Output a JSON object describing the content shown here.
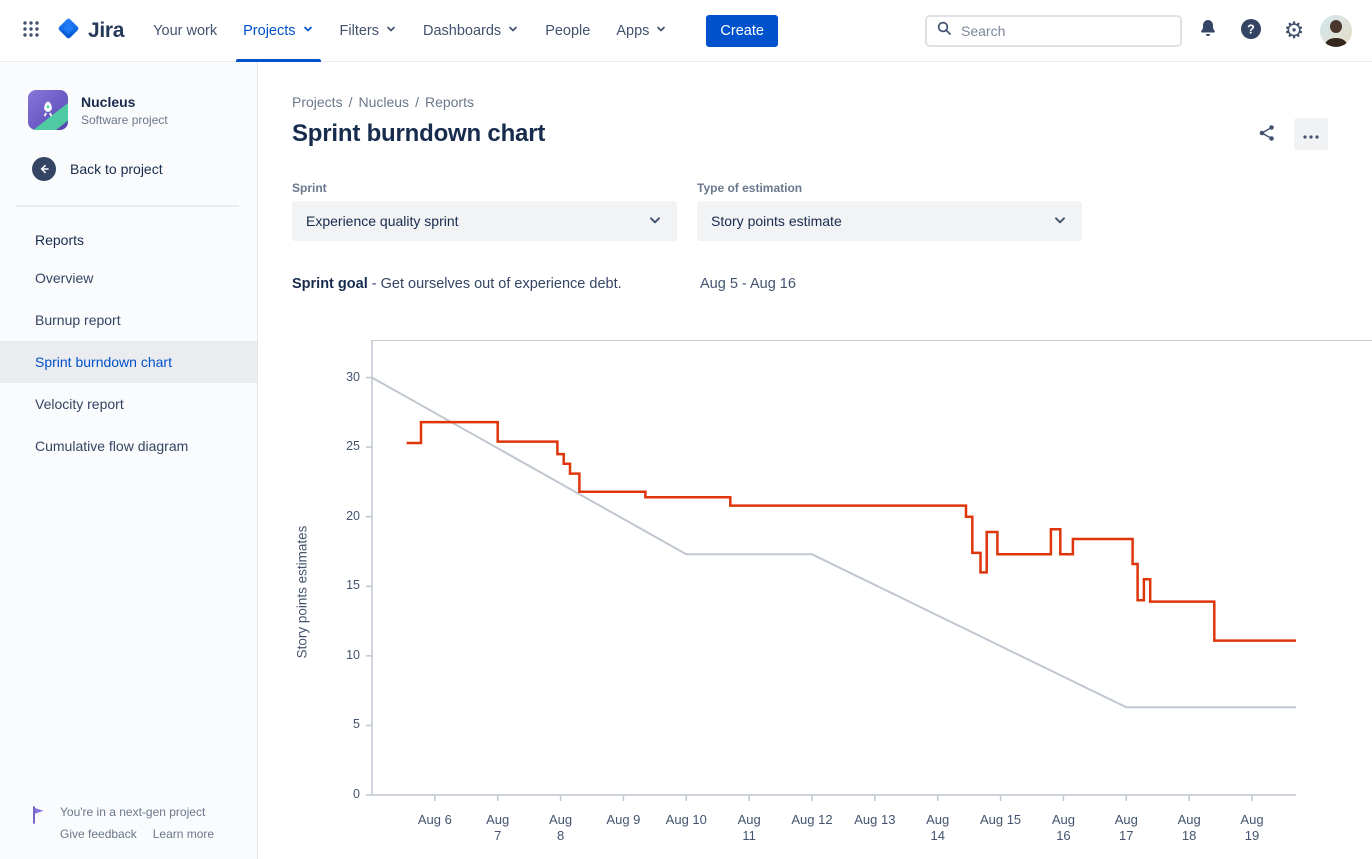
{
  "navbar": {
    "logo_text": "Jira",
    "items": [
      {
        "label": "Your work",
        "has_chevron": false,
        "active": false
      },
      {
        "label": "Projects",
        "has_chevron": true,
        "active": true
      },
      {
        "label": "Filters",
        "has_chevron": true,
        "active": false
      },
      {
        "label": "Dashboards",
        "has_chevron": true,
        "active": false
      },
      {
        "label": "People",
        "has_chevron": false,
        "active": false
      },
      {
        "label": "Apps",
        "has_chevron": true,
        "active": false
      }
    ],
    "create_label": "Create",
    "search_placeholder": "Search"
  },
  "sidebar": {
    "project": {
      "name": "Nucleus",
      "type": "Software project"
    },
    "back_label": "Back to project",
    "section": "Reports",
    "items": [
      {
        "label": "Overview",
        "selected": false
      },
      {
        "label": "Burnup report",
        "selected": false
      },
      {
        "label": "Sprint burndown chart",
        "selected": true
      },
      {
        "label": "Velocity report",
        "selected": false
      },
      {
        "label": "Cumulative flow diagram",
        "selected": false
      }
    ],
    "footer": {
      "line1": "You're in a next-gen project",
      "feedback": "Give feedback",
      "learn": "Learn more"
    }
  },
  "main": {
    "breadcrumb": [
      "Projects",
      "Nucleus",
      "Reports"
    ],
    "breadcrumb_sep": "/",
    "title": "Sprint burndown chart",
    "filters": {
      "sprint_label": "Sprint",
      "sprint_value": "Experience quality sprint",
      "estimation_label": "Type of estimation",
      "estimation_value": "Story points estimate"
    },
    "goal": {
      "label": "Sprint goal",
      "text": "- Get ourselves out of experience debt.",
      "dates": "Aug 5 - Aug 16"
    }
  },
  "icons": {
    "gear": "⚙"
  },
  "colors": {
    "accent": "#0052CC",
    "burndown_red": "#DE350B",
    "guideline_gray": "#C1C7D0"
  },
  "chart_data": {
    "type": "line",
    "title": "Sprint burndown chart",
    "xlabel": "",
    "ylabel": "Story points estimates",
    "x_unit": "days since Aug 5",
    "xlim": [
      0,
      14.7
    ],
    "ylim": [
      0,
      32.7
    ],
    "grid": false,
    "legend": "none",
    "y_ticks": [
      0,
      5,
      10,
      15,
      20,
      25,
      30
    ],
    "x_ticks": [
      {
        "day": 1,
        "label": "Aug 6"
      },
      {
        "day": 2,
        "label": "Aug\n7"
      },
      {
        "day": 3,
        "label": "Aug\n8"
      },
      {
        "day": 4,
        "label": "Aug 9"
      },
      {
        "day": 5,
        "label": "Aug 10"
      },
      {
        "day": 6,
        "label": "Aug\n11"
      },
      {
        "day": 7,
        "label": "Aug 12"
      },
      {
        "day": 8,
        "label": "Aug 13"
      },
      {
        "day": 9,
        "label": "Aug\n14"
      },
      {
        "day": 10,
        "label": "Aug 15"
      },
      {
        "day": 11,
        "label": "Aug\n16"
      },
      {
        "day": 12,
        "label": "Aug\n17"
      },
      {
        "day": 13,
        "label": "Aug\n18"
      },
      {
        "day": 14,
        "label": "Aug\n19"
      }
    ],
    "series": [
      {
        "name": "Guideline",
        "render": "line",
        "color": "#C1C7D0",
        "width": 2,
        "points": [
          [
            0,
            30
          ],
          [
            5,
            17.3
          ],
          [
            7,
            17.3
          ],
          [
            12,
            6.3
          ],
          [
            14.7,
            6.3
          ]
        ]
      },
      {
        "name": "Remaining work",
        "render": "step",
        "color": "#DE350B",
        "width": 2.5,
        "points": [
          [
            0.55,
            25.3
          ],
          [
            0.78,
            26.8
          ],
          [
            2.0,
            25.4
          ],
          [
            2.95,
            24.5
          ],
          [
            3.05,
            23.8
          ],
          [
            3.15,
            23.1
          ],
          [
            3.3,
            21.8
          ],
          [
            4.35,
            21.4
          ],
          [
            5.7,
            20.8
          ],
          [
            9.45,
            20.0
          ],
          [
            9.55,
            17.4
          ],
          [
            9.68,
            16.0
          ],
          [
            9.78,
            18.9
          ],
          [
            9.95,
            17.3
          ],
          [
            10.8,
            19.1
          ],
          [
            10.95,
            17.3
          ],
          [
            11.15,
            18.4
          ],
          [
            12.1,
            16.6
          ],
          [
            12.18,
            14.0
          ],
          [
            12.28,
            15.5
          ],
          [
            12.38,
            13.9
          ],
          [
            13.4,
            11.1
          ],
          [
            14.7,
            11.1
          ]
        ]
      }
    ]
  }
}
